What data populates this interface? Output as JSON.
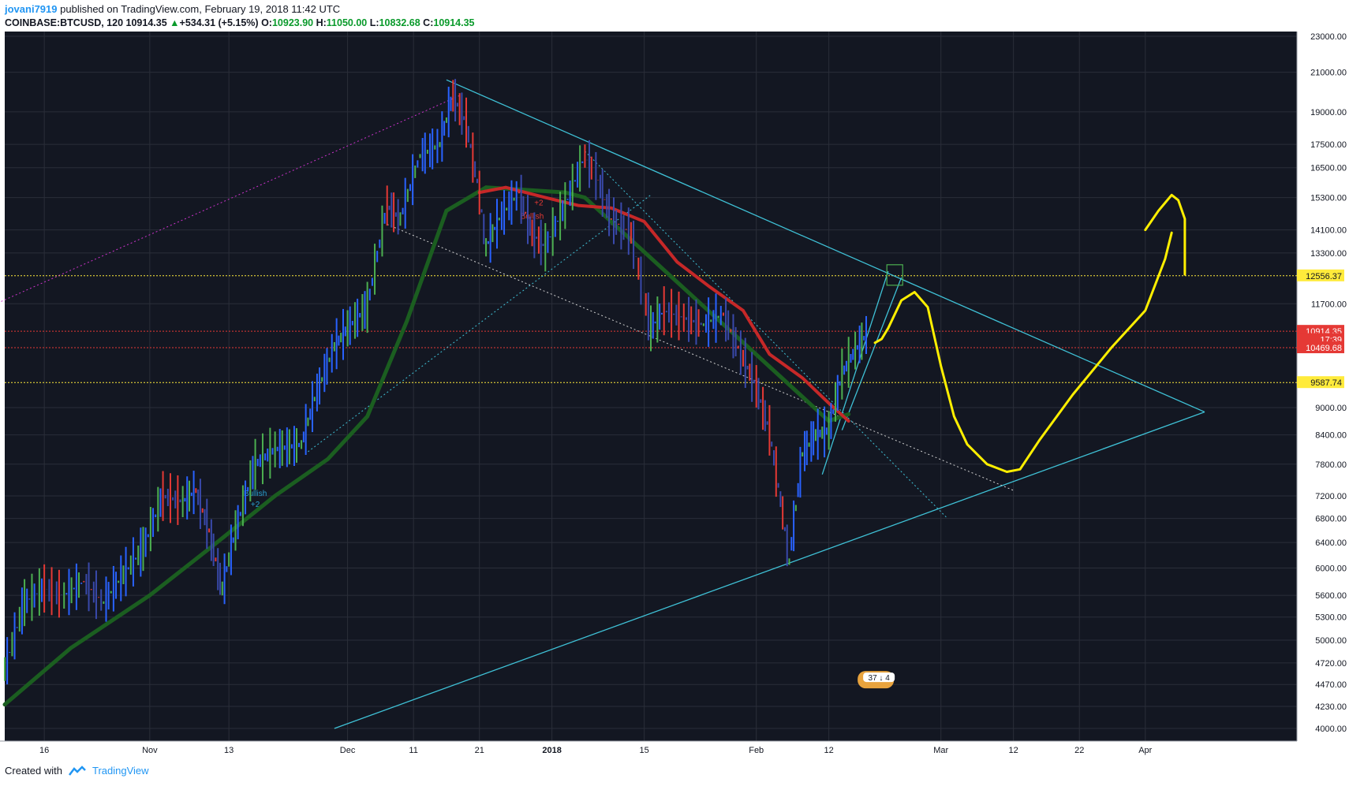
{
  "header": {
    "author": "jovani7919",
    "published": "published on TradingView.com, February 19, 2018 11:42 UTC",
    "symbol": "COINBASE:BTCUSD, 120",
    "last": "10914.35",
    "change_arrow": "▲",
    "change": "+534.31 (+5.15%)",
    "o_label": "O:",
    "o_val": "10923.90",
    "h_label": "H:",
    "h_val": "11050.00",
    "l_label": "L:",
    "l_val": "10832.68",
    "c_label": "C:",
    "c_val": "10914.35"
  },
  "footer": {
    "created_with": "Created with",
    "brand": "TradingView",
    "logo_icon": "tradingview-logo-icon"
  },
  "colors": {
    "background": "#131722",
    "grid": "#2a2e39",
    "cyan_lines": "#3fc1d6",
    "yellow_line": "#ffeb3b",
    "drawing": "#ffef00",
    "red_ma": "#c62828",
    "green_ma": "#1b5e20"
  },
  "chart_data": {
    "type": "candlestick",
    "symbol": "COINBASE:BTCUSD",
    "y_scale": "log",
    "ylim": [
      4000,
      23000
    ],
    "yticks": [
      "23000.00",
      "21000.00",
      "19000.00",
      "17500.00",
      "16500.00",
      "15300.00",
      "14100.00",
      "13300.00",
      "11700.00",
      "9000.00",
      "8400.00",
      "7800.00",
      "7200.00",
      "6800.00",
      "6400.00",
      "6000.00",
      "5600.00",
      "5300.00",
      "5000.00",
      "4720.00",
      "4470.00",
      "4230.00",
      "4000.00"
    ],
    "xticks": [
      {
        "label": "16",
        "date": "2017-10-16"
      },
      {
        "label": "Nov",
        "date": "2017-11-01"
      },
      {
        "label": "13",
        "date": "2017-11-13"
      },
      {
        "label": "Dec",
        "date": "2017-12-01"
      },
      {
        "label": "11",
        "date": "2017-12-11"
      },
      {
        "label": "21",
        "date": "2017-12-21"
      },
      {
        "label": "2018",
        "date": "2018-01-01"
      },
      {
        "label": "15",
        "date": "2018-01-15"
      },
      {
        "label": "Feb",
        "date": "2018-02-01"
      },
      {
        "label": "12",
        "date": "2018-02-12"
      },
      {
        "label": "Mar",
        "date": "2018-03-01"
      },
      {
        "label": "12",
        "date": "2018-03-12"
      },
      {
        "label": "22",
        "date": "2018-03-22"
      },
      {
        "label": "Apr",
        "date": "2018-04-01"
      }
    ],
    "price_path": [
      [
        "2017-10-10",
        4650
      ],
      [
        "2017-10-13",
        5500
      ],
      [
        "2017-10-16",
        5700
      ],
      [
        "2017-10-19",
        5600
      ],
      [
        "2017-10-22",
        5800
      ],
      [
        "2017-10-25",
        5500
      ],
      [
        "2017-10-28",
        5900
      ],
      [
        "2017-10-31",
        6300
      ],
      [
        "2017-11-03",
        7200
      ],
      [
        "2017-11-06",
        7100
      ],
      [
        "2017-11-08",
        7300
      ],
      [
        "2017-11-10",
        6600
      ],
      [
        "2017-11-12",
        5700
      ],
      [
        "2017-11-14",
        6600
      ],
      [
        "2017-11-17",
        7800
      ],
      [
        "2017-11-20",
        8100
      ],
      [
        "2017-11-24",
        8200
      ],
      [
        "2017-11-26",
        9200
      ],
      [
        "2017-11-29",
        10500
      ],
      [
        "2017-12-01",
        11000
      ],
      [
        "2017-12-04",
        11600
      ],
      [
        "2017-12-07",
        15000
      ],
      [
        "2017-12-09",
        14500
      ],
      [
        "2017-12-12",
        17000
      ],
      [
        "2017-12-15",
        17500
      ],
      [
        "2017-12-17",
        19800
      ],
      [
        "2017-12-19",
        18500
      ],
      [
        "2017-12-21",
        15500
      ],
      [
        "2017-12-22",
        13500
      ],
      [
        "2017-12-24",
        14500
      ],
      [
        "2017-12-27",
        15500
      ],
      [
        "2017-12-29",
        14000
      ],
      [
        "2017-12-31",
        13500
      ],
      [
        "2018-01-03",
        15000
      ],
      [
        "2018-01-06",
        17000
      ],
      [
        "2018-01-08",
        16000
      ],
      [
        "2018-01-10",
        14500
      ],
      [
        "2018-01-13",
        14000
      ],
      [
        "2018-01-16",
        11000
      ],
      [
        "2018-01-18",
        11500
      ],
      [
        "2018-01-21",
        11300
      ],
      [
        "2018-01-24",
        11100
      ],
      [
        "2018-01-27",
        11400
      ],
      [
        "2018-01-30",
        10200
      ],
      [
        "2018-02-01",
        9500
      ],
      [
        "2018-02-03",
        8500
      ],
      [
        "2018-02-05",
        6900
      ],
      [
        "2018-02-06",
        6100
      ],
      [
        "2018-02-08",
        8000
      ],
      [
        "2018-02-10",
        8400
      ],
      [
        "2018-02-12",
        8500
      ],
      [
        "2018-02-14",
        9800
      ],
      [
        "2018-02-16",
        10400
      ],
      [
        "2018-02-18",
        10900
      ]
    ],
    "red_ma": [
      [
        "2017-12-21",
        15500
      ],
      [
        "2017-12-25",
        15700
      ],
      [
        "2017-12-31",
        15300
      ],
      [
        "2018-01-05",
        15000
      ],
      [
        "2018-01-10",
        14900
      ],
      [
        "2018-01-15",
        14400
      ],
      [
        "2018-01-20",
        13000
      ],
      [
        "2018-01-25",
        12200
      ],
      [
        "2018-01-30",
        11500
      ],
      [
        "2018-02-03",
        10300
      ],
      [
        "2018-02-08",
        9700
      ],
      [
        "2018-02-12",
        9100
      ],
      [
        "2018-02-15",
        8700
      ]
    ],
    "green_ma": [
      [
        "2017-10-10",
        4250
      ],
      [
        "2017-10-20",
        4900
      ],
      [
        "2017-11-01",
        5600
      ],
      [
        "2017-11-10",
        6300
      ],
      [
        "2017-11-20",
        7200
      ],
      [
        "2017-11-28",
        7900
      ],
      [
        "2017-12-04",
        8800
      ],
      [
        "2017-12-10",
        11200
      ],
      [
        "2017-12-16",
        14800
      ],
      [
        "2017-12-22",
        15700
      ],
      [
        "2017-12-28",
        15600
      ],
      [
        "2018-01-03",
        15500
      ],
      [
        "2018-01-06",
        15300
      ],
      [
        "2018-02-12",
        8700
      ],
      [
        "2018-02-15",
        8850
      ]
    ],
    "price_labels": [
      {
        "value": "12556.37",
        "price": 12556.37,
        "bg": "#ffeb3b",
        "color": "#131722"
      },
      {
        "value": "10914.35",
        "price": 10914.35,
        "bg": "#e53935",
        "color": "#ffffff"
      },
      {
        "value": "17:39",
        "price": 10690,
        "bg": "#e53935",
        "color": "#ffffff"
      },
      {
        "value": "10469.68",
        "price": 10469.68,
        "bg": "#e53935",
        "color": "#ffffff"
      },
      {
        "value": "9587.74",
        "price": 9587.74,
        "bg": "#ffeb3b",
        "color": "#131722"
      }
    ],
    "hlines": [
      {
        "price": 12556.37,
        "color": "#ffeb3b"
      },
      {
        "price": 10914.35,
        "color": "#e53935"
      },
      {
        "price": 10469.68,
        "color": "#e53935"
      },
      {
        "price": 9587.74,
        "color": "#ffeb3b"
      }
    ],
    "trend_lines": [
      {
        "from": [
          "2017-12-16",
          20600
        ],
        "to": [
          "2018-04-10",
          8900
        ],
        "color": "#3fc1d6",
        "style": "solid"
      },
      {
        "from": [
          "2017-11-29",
          4000
        ],
        "to": [
          "2018-04-10",
          8900
        ],
        "color": "#3fc1d6",
        "style": "solid"
      },
      {
        "from": [
          "2017-12-07",
          14300
        ],
        "to": [
          "2018-03-12",
          7300
        ],
        "color": "#d0d0d0",
        "style": "dotted"
      },
      {
        "from": [
          "2017-09-28",
          10800
        ],
        "to": [
          "2017-12-18",
          19800
        ],
        "color": "#cc33cc",
        "style": "dotted"
      },
      {
        "from": [
          "2017-11-25",
          8050
        ],
        "to": [
          "2018-01-16",
          15400
        ],
        "color": "#3fc1d6",
        "style": "dotted"
      },
      {
        "from": [
          "2018-01-06",
          17200
        ],
        "to": [
          "2018-03-02",
          6800
        ],
        "color": "#3fc1d6",
        "style": "dotted"
      },
      {
        "from": [
          "2018-02-11",
          7600
        ],
        "to": [
          "2018-02-21",
          12700
        ],
        "color": "#3fc1d6",
        "style": "solid"
      },
      {
        "from": [
          "2018-02-14",
          8500
        ],
        "to": [
          "2018-02-23",
          12500
        ],
        "color": "#3fc1d6",
        "style": "solid"
      }
    ],
    "marker_box": {
      "date": "2018-02-22",
      "price": 12556.37
    },
    "drawing_1": [
      [
        "2018-02-19",
        10600
      ],
      [
        "2018-02-20",
        10700
      ],
      [
        "2018-02-21",
        11000
      ],
      [
        "2018-02-23",
        11800
      ],
      [
        "2018-02-25",
        12050
      ],
      [
        "2018-02-27",
        11600
      ],
      [
        "2018-03-01",
        10000
      ],
      [
        "2018-03-03",
        8800
      ],
      [
        "2018-03-05",
        8200
      ],
      [
        "2018-03-08",
        7800
      ],
      [
        "2018-03-11",
        7650
      ],
      [
        "2018-03-13",
        7700
      ],
      [
        "2018-03-16",
        8300
      ],
      [
        "2018-03-21",
        9300
      ],
      [
        "2018-03-27",
        10500
      ],
      [
        "2018-04-01",
        11500
      ],
      [
        "2018-04-04",
        13100
      ],
      [
        "2018-04-05",
        14000
      ]
    ],
    "drawing_2": [
      [
        "2018-04-01",
        14100
      ],
      [
        "2018-04-03",
        14800
      ],
      [
        "2018-04-05",
        15400
      ],
      [
        "2018-04-06",
        15200
      ],
      [
        "2018-04-07",
        14500
      ],
      [
        "2018-04-07",
        12600
      ]
    ],
    "annotations": [
      {
        "text": "Bullish",
        "date": "2017-11-17",
        "price": 7200,
        "color": "#2aa1d3"
      },
      {
        "text": "+2",
        "date": "2017-11-17",
        "price": 7000,
        "color": "#2aa1d3"
      },
      {
        "text": "+2",
        "date": "2017-12-30",
        "price": 15000,
        "color": "#e53935"
      },
      {
        "text": "Bullish",
        "date": "2017-12-29",
        "price": 14500,
        "color": "#e53935"
      }
    ],
    "badge": {
      "text": "37 ↓ 4",
      "date": "2018-02-19",
      "price": 4170
    }
  }
}
